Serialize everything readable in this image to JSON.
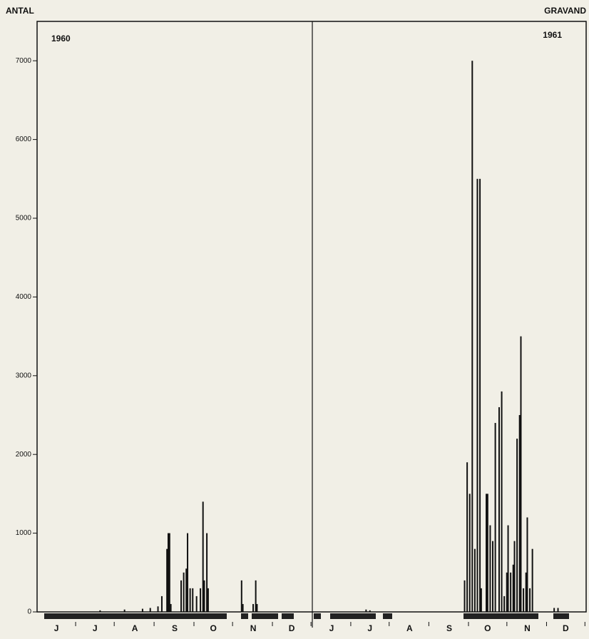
{
  "chart_data": [
    {
      "type": "bar",
      "y_label": "ANTAL",
      "annotation": "1960",
      "color": "#111111",
      "xlim": [
        0,
        214
      ],
      "xticks": [
        {
          "value": 15,
          "label": "J"
        },
        {
          "value": 45,
          "label": "J"
        },
        {
          "value": 76,
          "label": "A"
        },
        {
          "value": 107,
          "label": "S"
        },
        {
          "value": 137,
          "label": "O"
        },
        {
          "value": 168,
          "label": "N"
        },
        {
          "value": 198,
          "label": "D"
        }
      ],
      "ylim": [
        0,
        7500
      ],
      "yticks": [
        0,
        1000,
        2000,
        3000,
        4000,
        5000,
        6000,
        7000
      ],
      "x": [
        49,
        68,
        82,
        88,
        94,
        97,
        101,
        102,
        103,
        104,
        112,
        114,
        116,
        117,
        119,
        121,
        124,
        127,
        129,
        130,
        132,
        133,
        159,
        160,
        168,
        170,
        171
      ],
      "values": [
        20,
        30,
        40,
        50,
        70,
        200,
        800,
        1000,
        1000,
        100,
        400,
        500,
        550,
        1000,
        300,
        300,
        200,
        300,
        1400,
        400,
        1000,
        300,
        400,
        100,
        100,
        400,
        100
      ]
    },
    {
      "type": "bar",
      "title": "GRAVAND",
      "annotation": "1961",
      "color": "#111111",
      "xlim": [
        0,
        214
      ],
      "xticks": [
        {
          "value": 15,
          "label": "J"
        },
        {
          "value": 45,
          "label": "J"
        },
        {
          "value": 76,
          "label": "A"
        },
        {
          "value": 107,
          "label": "S"
        },
        {
          "value": 137,
          "label": "O"
        },
        {
          "value": 168,
          "label": "N"
        },
        {
          "value": 198,
          "label": "D"
        }
      ],
      "ylim": [
        0,
        7500
      ],
      "x": [
        42,
        45,
        119,
        121,
        123,
        125,
        127,
        129,
        131,
        132,
        136,
        137,
        139,
        141,
        143,
        146,
        148,
        150,
        152,
        153,
        155,
        157,
        158,
        160,
        162,
        163,
        165,
        167,
        168,
        170,
        172,
        189,
        192
      ],
      "values": [
        30,
        20,
        400,
        1900,
        1500,
        7000,
        800,
        5500,
        5500,
        300,
        1500,
        1500,
        1100,
        900,
        2400,
        2600,
        2800,
        200,
        500,
        1100,
        500,
        600,
        900,
        2200,
        2500,
        3500,
        300,
        500,
        1200,
        300,
        800,
        50,
        50
      ]
    }
  ]
}
